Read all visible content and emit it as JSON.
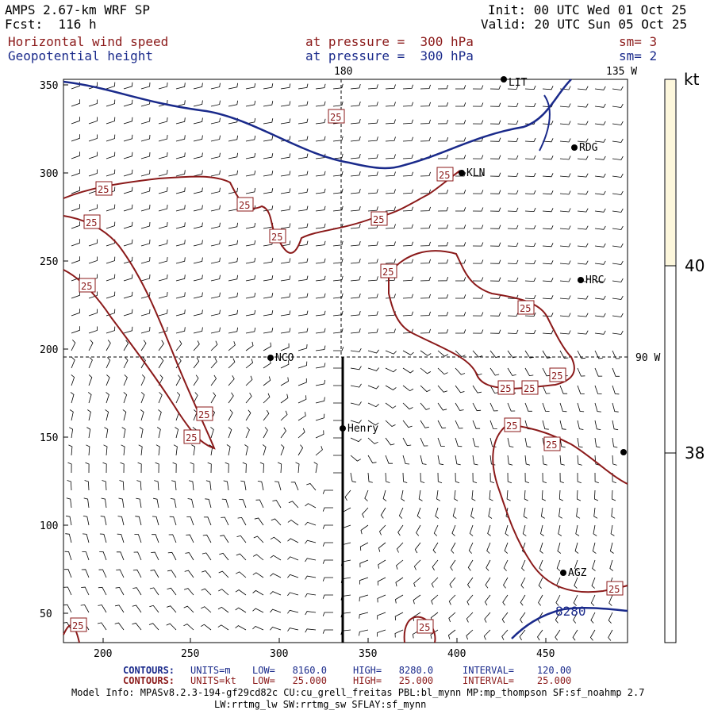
{
  "header": {
    "model": "AMPS 2.67-km WRF SP",
    "forecast": "Fcst:  116 h",
    "init": "Init: 00 UTC Wed 01 Oct 25",
    "valid": "Valid: 20 UTC Sun 05 Oct 25",
    "field1": {
      "name": "Horizontal wind speed",
      "level": "at pressure =  300 hPa",
      "sm": "sm= 3"
    },
    "field2": {
      "name": "Geopotential height",
      "level": "at pressure =  300 hPa",
      "sm": "sm= 2"
    }
  },
  "map": {
    "x_ticks": [
      "200",
      "250",
      "300",
      "350",
      "400",
      "450"
    ],
    "y_ticks": [
      "350",
      "300",
      "250",
      "200",
      "150",
      "100",
      "50"
    ],
    "meridian_labels": {
      "top_180": "180",
      "top_135w": "135 W",
      "right_90w": "90 W"
    },
    "stations": [
      {
        "name": "NCO",
        "label": "NCO"
      },
      {
        "name": "Henry",
        "label": "Henry"
      },
      {
        "name": "KLN",
        "label": "KLN"
      },
      {
        "name": "RDG",
        "label": "RDG"
      },
      {
        "name": "HRC",
        "label": "HRC"
      },
      {
        "name": "AGZ",
        "label": "AGZ"
      },
      {
        "name": "LIT",
        "label": "LIT"
      }
    ],
    "contour_label_wind": "25",
    "contour_label_height": "8280",
    "colors": {
      "wind_contour": "#8b1a1a",
      "height_contour": "#1a2a8b",
      "barb": "#000000"
    }
  },
  "colorbar": {
    "unit": "kt",
    "labels": [
      "40",
      "38"
    ],
    "top_color": "#fdf7dc"
  },
  "footer": {
    "row1": {
      "title": "CONTOURS:",
      "units": "UNITS=m",
      "low": "LOW=   8160.0",
      "high": "HIGH=   8280.0",
      "interval": "INTERVAL=    120.00"
    },
    "row2": {
      "title": "CONTOURS:",
      "units": "UNITS=kt",
      "low": "LOW=   25.000",
      "high": "HIGH=   25.000",
      "interval": "INTERVAL=    25.000"
    },
    "model_info": "Model Info: MPASv8.2.3-194-gf29cd82c CU:cu_grell_freitas PBL:bl_mynn MP:mp_thompson SF:sf_noahmp 2.7",
    "model_info2": "LW:rrtmg_lw SW:rrtmg_sw SFLAY:sf_mynn"
  }
}
